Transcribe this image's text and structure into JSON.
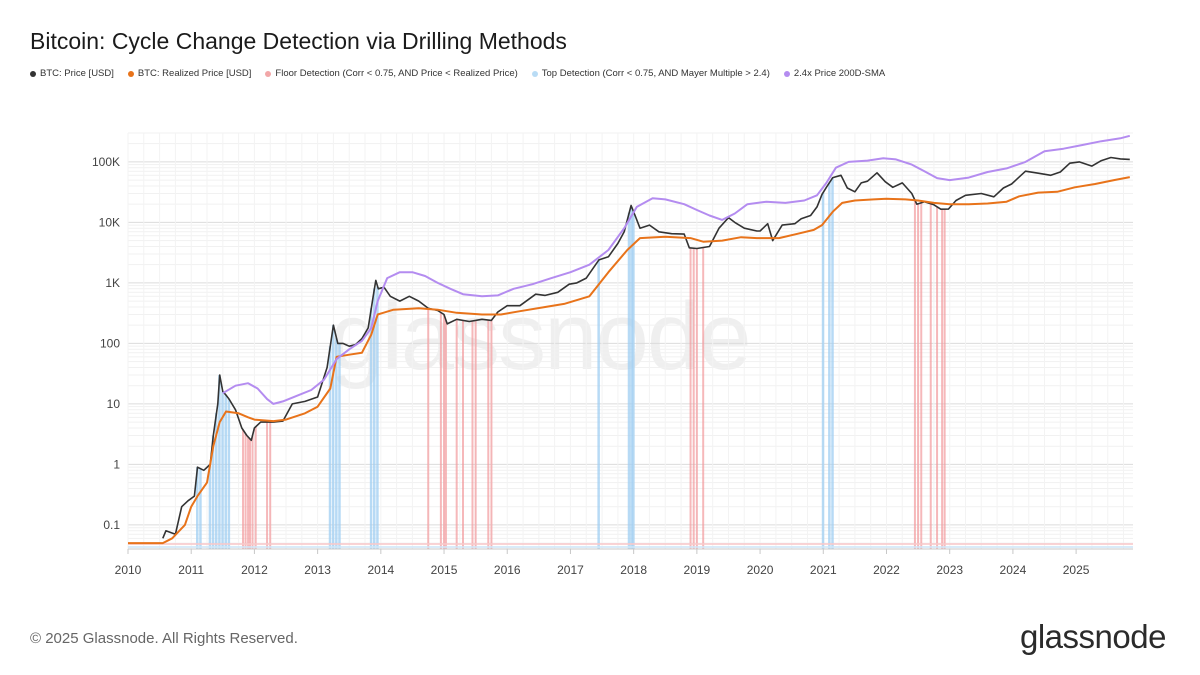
{
  "title": "Bitcoin: Cycle Change Detection via Drilling Methods",
  "legend": [
    {
      "label": "BTC: Price [USD]",
      "color": "#333333"
    },
    {
      "label": "BTC: Realized Price [USD]",
      "color": "#e8731a"
    },
    {
      "label": "Floor Detection (Corr < 0.75, AND Price < Realized Price)",
      "color": "#f2a7a8"
    },
    {
      "label": "Top Detection (Corr < 0.75, AND Mayer Multiple > 2.4)",
      "color": "#b9dcf5"
    },
    {
      "label": "2.4x Price 200D-SMA",
      "color": "#b48cf0"
    }
  ],
  "footer": "© 2025 Glassnode. All Rights Reserved.",
  "logo": "glassnode",
  "watermark": "glassnode",
  "chart_data": {
    "type": "line",
    "yscale": "log",
    "xlim": [
      2010.0,
      2025.9
    ],
    "ylim": [
      0.04,
      300000
    ],
    "x_ticks": [
      "2010",
      "2011",
      "2012",
      "2013",
      "2014",
      "2015",
      "2016",
      "2017",
      "2018",
      "2019",
      "2020",
      "2021",
      "2022",
      "2023",
      "2024",
      "2025"
    ],
    "y_ticks": [
      {
        "value": 0.1,
        "label": "0.1"
      },
      {
        "value": 1,
        "label": "1"
      },
      {
        "value": 10,
        "label": "10"
      },
      {
        "value": 100,
        "label": "100"
      },
      {
        "value": 1000,
        "label": "1K"
      },
      {
        "value": 10000,
        "label": "10K"
      },
      {
        "value": 100000,
        "label": "100K"
      }
    ],
    "series": [
      {
        "name": "BTC: Price [USD]",
        "color": "#333333",
        "points": [
          [
            2010.55,
            0.06
          ],
          [
            2010.6,
            0.08
          ],
          [
            2010.75,
            0.07
          ],
          [
            2010.85,
            0.2
          ],
          [
            2010.95,
            0.25
          ],
          [
            2011.05,
            0.3
          ],
          [
            2011.1,
            0.9
          ],
          [
            2011.2,
            0.8
          ],
          [
            2011.3,
            1.0
          ],
          [
            2011.35,
            3.0
          ],
          [
            2011.42,
            10
          ],
          [
            2011.45,
            30
          ],
          [
            2011.5,
            16
          ],
          [
            2011.55,
            14
          ],
          [
            2011.6,
            12
          ],
          [
            2011.7,
            8
          ],
          [
            2011.8,
            4
          ],
          [
            2011.88,
            3
          ],
          [
            2011.95,
            2.5
          ],
          [
            2012.0,
            4
          ],
          [
            2012.1,
            5
          ],
          [
            2012.3,
            5.0
          ],
          [
            2012.45,
            5.2
          ],
          [
            2012.6,
            10
          ],
          [
            2012.8,
            11
          ],
          [
            2013.0,
            13
          ],
          [
            2013.15,
            40
          ],
          [
            2013.25,
            200
          ],
          [
            2013.32,
            100
          ],
          [
            2013.4,
            100
          ],
          [
            2013.5,
            90
          ],
          [
            2013.6,
            95
          ],
          [
            2013.7,
            120
          ],
          [
            2013.8,
            180
          ],
          [
            2013.88,
            600
          ],
          [
            2013.92,
            1100
          ],
          [
            2013.96,
            800
          ],
          [
            2014.05,
            850
          ],
          [
            2014.15,
            600
          ],
          [
            2014.3,
            500
          ],
          [
            2014.45,
            600
          ],
          [
            2014.6,
            500
          ],
          [
            2014.75,
            380
          ],
          [
            2014.9,
            350
          ],
          [
            2015.0,
            300
          ],
          [
            2015.05,
            210
          ],
          [
            2015.2,
            250
          ],
          [
            2015.4,
            230
          ],
          [
            2015.6,
            250
          ],
          [
            2015.75,
            240
          ],
          [
            2015.85,
            330
          ],
          [
            2016.0,
            420
          ],
          [
            2016.2,
            420
          ],
          [
            2016.45,
            650
          ],
          [
            2016.6,
            620
          ],
          [
            2016.8,
            700
          ],
          [
            2016.98,
            950
          ],
          [
            2017.1,
            1000
          ],
          [
            2017.25,
            1200
          ],
          [
            2017.45,
            2400
          ],
          [
            2017.6,
            2700
          ],
          [
            2017.75,
            4500
          ],
          [
            2017.85,
            7000
          ],
          [
            2017.96,
            19000
          ],
          [
            2018.05,
            11000
          ],
          [
            2018.1,
            8000
          ],
          [
            2018.25,
            9000
          ],
          [
            2018.4,
            7000
          ],
          [
            2018.6,
            6500
          ],
          [
            2018.8,
            6400
          ],
          [
            2018.88,
            3800
          ],
          [
            2019.0,
            3700
          ],
          [
            2019.2,
            4000
          ],
          [
            2019.35,
            8000
          ],
          [
            2019.5,
            12000
          ],
          [
            2019.6,
            10000
          ],
          [
            2019.75,
            8000
          ],
          [
            2019.95,
            7200
          ],
          [
            2020.0,
            7200
          ],
          [
            2020.12,
            9500
          ],
          [
            2020.2,
            5000
          ],
          [
            2020.35,
            9000
          ],
          [
            2020.55,
            9500
          ],
          [
            2020.65,
            11500
          ],
          [
            2020.8,
            13000
          ],
          [
            2020.9,
            18000
          ],
          [
            2020.98,
            29000
          ],
          [
            2021.05,
            38000
          ],
          [
            2021.15,
            55000
          ],
          [
            2021.28,
            60000
          ],
          [
            2021.38,
            37000
          ],
          [
            2021.5,
            32000
          ],
          [
            2021.6,
            45000
          ],
          [
            2021.7,
            48000
          ],
          [
            2021.85,
            66000
          ],
          [
            2021.98,
            47000
          ],
          [
            2022.1,
            38000
          ],
          [
            2022.25,
            45000
          ],
          [
            2022.4,
            30000
          ],
          [
            2022.48,
            20000
          ],
          [
            2022.6,
            22000
          ],
          [
            2022.75,
            19500
          ],
          [
            2022.86,
            16500
          ],
          [
            2022.98,
            16600
          ],
          [
            2023.1,
            23000
          ],
          [
            2023.25,
            28000
          ],
          [
            2023.5,
            30000
          ],
          [
            2023.7,
            26500
          ],
          [
            2023.85,
            37000
          ],
          [
            2023.98,
            43000
          ],
          [
            2024.2,
            70000
          ],
          [
            2024.4,
            65000
          ],
          [
            2024.6,
            60000
          ],
          [
            2024.75,
            68000
          ],
          [
            2024.9,
            95000
          ],
          [
            2025.05,
            100000
          ],
          [
            2025.25,
            85000
          ],
          [
            2025.4,
            105000
          ],
          [
            2025.55,
            118000
          ],
          [
            2025.7,
            112000
          ],
          [
            2025.85,
            110000
          ]
        ]
      },
      {
        "name": "BTC: Realized Price [USD]",
        "color": "#e8731a",
        "points": [
          [
            2010.0,
            0.05
          ],
          [
            2010.55,
            0.05
          ],
          [
            2010.7,
            0.06
          ],
          [
            2010.9,
            0.1
          ],
          [
            2011.0,
            0.2
          ],
          [
            2011.1,
            0.3
          ],
          [
            2011.25,
            0.5
          ],
          [
            2011.35,
            2.0
          ],
          [
            2011.45,
            5.0
          ],
          [
            2011.55,
            7.5
          ],
          [
            2011.75,
            7
          ],
          [
            2011.9,
            6
          ],
          [
            2012.0,
            5.5
          ],
          [
            2012.3,
            5.2
          ],
          [
            2012.5,
            5.5
          ],
          [
            2012.8,
            7
          ],
          [
            2013.0,
            9
          ],
          [
            2013.2,
            18
          ],
          [
            2013.3,
            60
          ],
          [
            2013.5,
            65
          ],
          [
            2013.7,
            70
          ],
          [
            2013.85,
            140
          ],
          [
            2013.95,
            300
          ],
          [
            2014.2,
            360
          ],
          [
            2014.6,
            380
          ],
          [
            2014.9,
            360
          ],
          [
            2015.2,
            320
          ],
          [
            2015.6,
            300
          ],
          [
            2015.9,
            300
          ],
          [
            2016.2,
            340
          ],
          [
            2016.6,
            400
          ],
          [
            2016.9,
            450
          ],
          [
            2017.3,
            600
          ],
          [
            2017.6,
            1500
          ],
          [
            2017.9,
            3500
          ],
          [
            2018.1,
            5500
          ],
          [
            2018.5,
            5800
          ],
          [
            2018.9,
            5500
          ],
          [
            2019.1,
            4800
          ],
          [
            2019.4,
            5000
          ],
          [
            2019.7,
            5700
          ],
          [
            2019.95,
            5500
          ],
          [
            2020.3,
            5500
          ],
          [
            2020.6,
            6500
          ],
          [
            2020.85,
            7500
          ],
          [
            2020.98,
            9000
          ],
          [
            2021.15,
            15000
          ],
          [
            2021.3,
            21000
          ],
          [
            2021.5,
            23000
          ],
          [
            2021.8,
            24000
          ],
          [
            2022.0,
            24500
          ],
          [
            2022.3,
            24000
          ],
          [
            2022.5,
            23000
          ],
          [
            2022.75,
            21000
          ],
          [
            2023.0,
            20000
          ],
          [
            2023.3,
            20000
          ],
          [
            2023.6,
            20500
          ],
          [
            2023.9,
            22000
          ],
          [
            2024.1,
            27000
          ],
          [
            2024.4,
            31000
          ],
          [
            2024.7,
            32000
          ],
          [
            2024.98,
            38000
          ],
          [
            2025.3,
            43000
          ],
          [
            2025.6,
            50000
          ],
          [
            2025.85,
            56000
          ]
        ]
      },
      {
        "name": "2.4x Price 200D-SMA",
        "color": "#b48cf0",
        "points": [
          [
            2011.5,
            15
          ],
          [
            2011.7,
            20
          ],
          [
            2011.9,
            22
          ],
          [
            2012.05,
            18
          ],
          [
            2012.2,
            12
          ],
          [
            2012.3,
            10
          ],
          [
            2012.45,
            11
          ],
          [
            2012.7,
            14
          ],
          [
            2012.9,
            17
          ],
          [
            2013.1,
            25
          ],
          [
            2013.3,
            55
          ],
          [
            2013.5,
            80
          ],
          [
            2013.7,
            110
          ],
          [
            2013.85,
            180
          ],
          [
            2013.95,
            500
          ],
          [
            2014.1,
            1200
          ],
          [
            2014.3,
            1500
          ],
          [
            2014.5,
            1500
          ],
          [
            2014.7,
            1300
          ],
          [
            2014.9,
            1000
          ],
          [
            2015.1,
            800
          ],
          [
            2015.3,
            650
          ],
          [
            2015.6,
            600
          ],
          [
            2015.85,
            620
          ],
          [
            2016.1,
            800
          ],
          [
            2016.4,
            950
          ],
          [
            2016.7,
            1200
          ],
          [
            2017.0,
            1500
          ],
          [
            2017.3,
            2000
          ],
          [
            2017.6,
            3500
          ],
          [
            2017.85,
            8000
          ],
          [
            2018.05,
            18000
          ],
          [
            2018.3,
            25000
          ],
          [
            2018.5,
            24000
          ],
          [
            2018.8,
            20000
          ],
          [
            2019.0,
            16000
          ],
          [
            2019.2,
            13000
          ],
          [
            2019.4,
            11000
          ],
          [
            2019.6,
            14000
          ],
          [
            2019.8,
            20000
          ],
          [
            2020.1,
            22000
          ],
          [
            2020.4,
            21000
          ],
          [
            2020.7,
            23000
          ],
          [
            2020.9,
            28000
          ],
          [
            2021.05,
            45000
          ],
          [
            2021.2,
            80000
          ],
          [
            2021.4,
            100000
          ],
          [
            2021.7,
            105000
          ],
          [
            2021.95,
            115000
          ],
          [
            2022.15,
            110000
          ],
          [
            2022.4,
            90000
          ],
          [
            2022.6,
            70000
          ],
          [
            2022.8,
            54000
          ],
          [
            2023.0,
            50000
          ],
          [
            2023.3,
            55000
          ],
          [
            2023.6,
            68000
          ],
          [
            2023.9,
            78000
          ],
          [
            2024.2,
            100000
          ],
          [
            2024.5,
            150000
          ],
          [
            2024.8,
            165000
          ],
          [
            2025.1,
            190000
          ],
          [
            2025.4,
            220000
          ],
          [
            2025.7,
            245000
          ],
          [
            2025.85,
            270000
          ]
        ]
      }
    ],
    "floor_detection_years": [
      2011.82,
      2011.86,
      2011.9,
      2011.93,
      2011.97,
      2012.02,
      2012.2,
      2012.25,
      2014.75,
      2014.95,
      2015.0,
      2015.03,
      2015.2,
      2015.3,
      2015.45,
      2015.5,
      2015.7,
      2015.75,
      2018.9,
      2018.95,
      2019.0,
      2019.1,
      2022.45,
      2022.5,
      2022.55,
      2022.7,
      2022.8,
      2022.88,
      2022.92
    ],
    "top_detection_years": [
      2011.1,
      2011.15,
      2011.3,
      2011.35,
      2011.4,
      2011.45,
      2011.5,
      2011.55,
      2011.6,
      2013.2,
      2013.25,
      2013.3,
      2013.35,
      2013.85,
      2013.9,
      2013.95,
      2017.45,
      2017.93,
      2017.97,
      2018.0,
      2021.0,
      2021.1,
      2021.15
    ]
  }
}
